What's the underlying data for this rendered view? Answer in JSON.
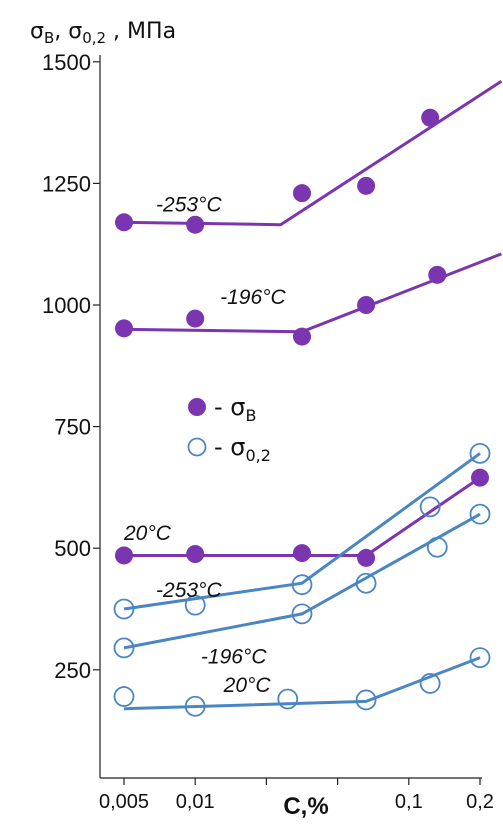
{
  "chart_data": {
    "type": "scatter",
    "ylabel_parts": {
      "sym1": "σ",
      "sub1": "B",
      "sep": ", ",
      "sym2": "σ",
      "sub2": "0,2",
      "unit": " , МПа"
    },
    "xlabel": "C,%",
    "x_categories": [
      "0,005",
      "0,01",
      "",
      "",
      "0,1",
      "0,2"
    ],
    "y_ticks": [
      250,
      500,
      750,
      1000,
      1250,
      1500
    ],
    "y_tick_labels": [
      "250",
      "500",
      "750",
      "1000",
      "1250",
      "1500"
    ],
    "ylim": [
      50,
      1530
    ],
    "xlim": [
      -0.05,
      5.05
    ],
    "legend": {
      "filled_label_prefix": "- σ",
      "filled_label_sub": "B",
      "open_label_prefix": "- σ",
      "open_label_sub": "0,2"
    },
    "series": [
      {
        "kind": "uts",
        "marker": "filled",
        "color": "#7b35b0",
        "label": "-253°C",
        "points": [
          [
            0,
            1170
          ],
          [
            1,
            1165
          ],
          [
            2.5,
            1230
          ],
          [
            3.4,
            1245
          ],
          [
            4.3,
            1385
          ]
        ],
        "fit": [
          [
            0,
            1170
          ],
          [
            2.2,
            1165
          ],
          [
            5.3,
            1460
          ]
        ]
      },
      {
        "kind": "uts",
        "marker": "filled",
        "color": "#7b35b0",
        "label": "-196°C",
        "points": [
          [
            0,
            952
          ],
          [
            1,
            972
          ],
          [
            2.5,
            935
          ],
          [
            3.4,
            1000
          ],
          [
            4.4,
            1062
          ]
        ],
        "fit": [
          [
            0,
            950
          ],
          [
            2.5,
            945
          ],
          [
            5.3,
            1105
          ]
        ]
      },
      {
        "kind": "uts",
        "marker": "filled",
        "color": "#7b35b0",
        "label": "20°C",
        "points": [
          [
            0,
            485
          ],
          [
            1,
            488
          ],
          [
            2.5,
            490
          ],
          [
            3.4,
            480
          ],
          [
            5.0,
            645
          ]
        ],
        "fit": [
          [
            0,
            485
          ],
          [
            3.4,
            485
          ],
          [
            5.0,
            645
          ]
        ]
      },
      {
        "kind": "ys",
        "marker": "open",
        "color": "#4a86c4",
        "label": "-253°C",
        "points": [
          [
            0,
            375
          ],
          [
            1,
            383
          ],
          [
            2.5,
            425
          ],
          [
            3.4,
            428
          ],
          [
            4.3,
            585
          ],
          [
            5.0,
            695
          ]
        ],
        "fit": [
          [
            0,
            375
          ],
          [
            2.5,
            428
          ],
          [
            5.0,
            695
          ]
        ]
      },
      {
        "kind": "ys",
        "marker": "open",
        "color": "#4a86c4",
        "label": "-196°C",
        "points": [
          [
            0,
            295
          ],
          [
            2.5,
            365
          ],
          [
            4.4,
            502
          ],
          [
            5.0,
            570
          ]
        ],
        "fit": [
          [
            0,
            295
          ],
          [
            2.5,
            365
          ],
          [
            5.0,
            570
          ]
        ]
      },
      {
        "kind": "ys",
        "marker": "open",
        "color": "#4a86c4",
        "label": "20°C",
        "points": [
          [
            0,
            195
          ],
          [
            1,
            175
          ],
          [
            2.3,
            190
          ],
          [
            3.4,
            188
          ],
          [
            4.3,
            222
          ],
          [
            5.0,
            275
          ]
        ],
        "fit": [
          [
            0,
            170
          ],
          [
            3.4,
            185
          ],
          [
            5.0,
            275
          ]
        ]
      }
    ]
  }
}
